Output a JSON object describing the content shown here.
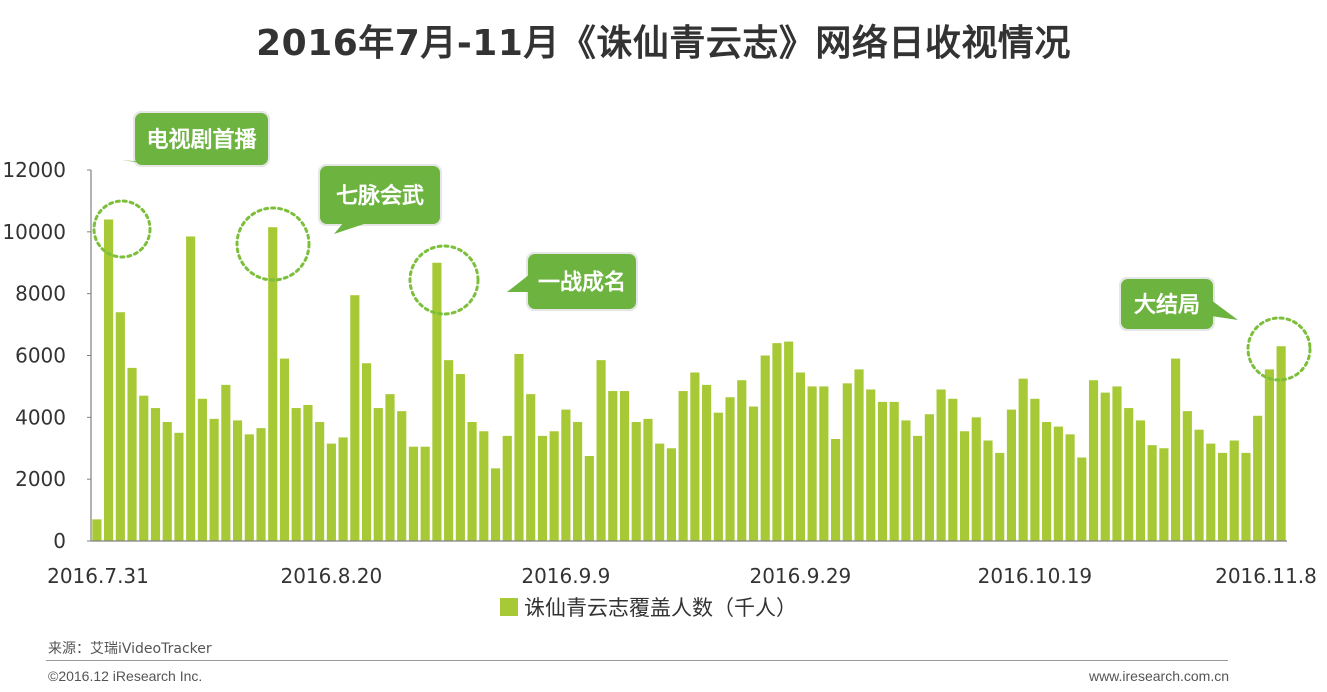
{
  "title": "2016年7月-11月《诛仙青云志》网络日收视情况",
  "source": "来源：艾瑞iVideoTracker",
  "footer": {
    "copyright": "©2016.12 iResearch Inc.",
    "website": "www.iresearch.com.cn"
  },
  "colors": {
    "bar": "#a6c935",
    "callout_bg": "#6cb33f",
    "callout_border": "#e6e6e6",
    "circle": "#7cbf3a",
    "axis": "#808080"
  },
  "chart_data": {
    "type": "bar",
    "title": "2016年7月-11月《诛仙青云志》网络日收视情况",
    "xlabel": "",
    "ylabel": "",
    "ylim": [
      0,
      12000
    ],
    "yticks": [
      0,
      2000,
      4000,
      6000,
      8000,
      10000,
      12000
    ],
    "x_tick_labels": [
      "2016.7.31",
      "2016.8.20",
      "2016.9.9",
      "2016.9.29",
      "2016.10.19",
      "2016.11.8"
    ],
    "x_tick_indices": [
      0,
      20,
      40,
      60,
      80,
      100
    ],
    "legend_position": "bottom",
    "grid": false,
    "series": [
      {
        "name": "诛仙青云志覆盖人数（千人）",
        "values": [
          700,
          10400,
          7400,
          5600,
          4700,
          4300,
          3850,
          3500,
          9850,
          4600,
          3950,
          5050,
          3900,
          3450,
          3650,
          10150,
          5900,
          4300,
          4400,
          3850,
          3150,
          3350,
          7950,
          5750,
          4300,
          4750,
          4200,
          3050,
          3050,
          9000,
          5850,
          5400,
          3850,
          3550,
          2350,
          3400,
          6050,
          4750,
          3400,
          3550,
          4250,
          3850,
          2750,
          5850,
          4850,
          4850,
          3850,
          3950,
          3150,
          3000,
          4850,
          5450,
          5050,
          4150,
          4650,
          5200,
          4350,
          6000,
          6400,
          6450,
          5450,
          5000,
          5000,
          3300,
          5100,
          5550,
          4900,
          4500,
          4500,
          3900,
          3400,
          4100,
          4900,
          4600,
          3550,
          4000,
          3250,
          2850,
          4250,
          5250,
          4600,
          3850,
          3700,
          3450,
          2700,
          5200,
          4800,
          5000,
          4300,
          3900,
          3100,
          3000,
          5900,
          4200,
          3600,
          3150,
          2850,
          3250,
          2850,
          4050,
          5550,
          6300
        ]
      }
    ],
    "annotations": [
      {
        "label": "电视剧首播",
        "bar_index": 1
      },
      {
        "label": "七脉会武",
        "bar_index": 15
      },
      {
        "label": "一战成名",
        "bar_index": 29
      },
      {
        "label": "大结局",
        "bar_index": 101
      }
    ]
  }
}
